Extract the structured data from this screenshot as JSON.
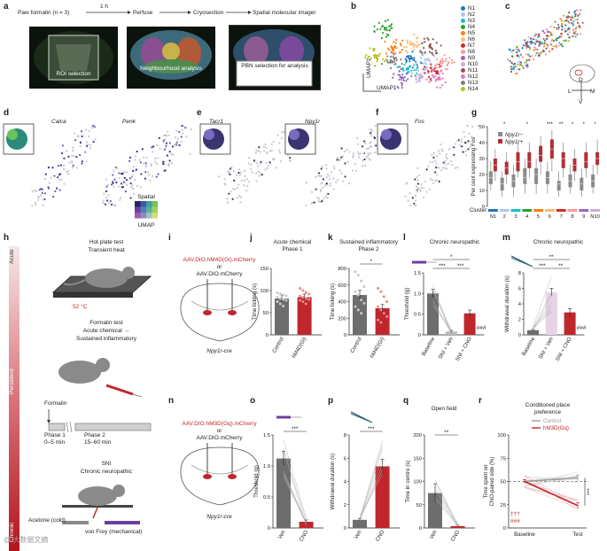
{
  "colors": {
    "red": "#c0272d",
    "gray": "#6d6d6d",
    "lightgray": "#b8b8b8",
    "purple": "#4a3a8c",
    "accent_teal": "#2a7f6f"
  },
  "panel_a": {
    "label": "a",
    "steps": [
      "Paw formalin (n = 3)",
      "Perfuse",
      "Cryosection",
      "Spatial molecular imager"
    ],
    "arrow1_label": "1 h",
    "image_captions": [
      "ROI selection",
      "Neighbourhood analysis",
      "PBN selection for analysis"
    ]
  },
  "panel_b": {
    "label": "b",
    "xlabel": "UMAP1",
    "ylabel": "UMAP2",
    "clusters": [
      {
        "name": "N1",
        "color": "#1f77b4"
      },
      {
        "name": "N2",
        "color": "#aec7e8"
      },
      {
        "name": "N3",
        "color": "#17becf"
      },
      {
        "name": "N4",
        "color": "#2ca02c"
      },
      {
        "name": "N5",
        "color": "#ff7f0e"
      },
      {
        "name": "N6",
        "color": "#ffbb78"
      },
      {
        "name": "N7",
        "color": "#d62728"
      },
      {
        "name": "N8",
        "color": "#ff9896"
      },
      {
        "name": "N9",
        "color": "#9467bd"
      },
      {
        "name": "N10",
        "color": "#c5b0d5"
      },
      {
        "name": "N11",
        "color": "#8c564b"
      },
      {
        "name": "N12",
        "color": "#e377c2"
      },
      {
        "name": "N13",
        "color": "#7f7f7f"
      },
      {
        "name": "N14",
        "color": "#bcbd22"
      }
    ]
  },
  "panel_c": {
    "label": "c",
    "compass": [
      "D",
      "V",
      "L",
      "M"
    ]
  },
  "panel_d": {
    "label": "d",
    "genes": [
      "Calca",
      "Penk"
    ],
    "legend_title": "Spatial",
    "legend_sub": "UMAP"
  },
  "panel_e": {
    "label": "e",
    "genes": [
      "Tacr1",
      "Npy1r"
    ]
  },
  "panel_f": {
    "label": "f",
    "genes": [
      "Fos"
    ]
  },
  "chart_data": [
    {
      "id": "g",
      "type": "box",
      "ylabel": "Per cent expressing Fos",
      "ylim": [
        0,
        50
      ],
      "yticks": [
        "0",
        "10",
        "20",
        "30",
        "40",
        "50"
      ],
      "xlabel": "Cluster:",
      "categories": [
        "N1",
        "2",
        "3",
        "4",
        "5",
        "6",
        "7",
        "8",
        "9",
        "N10"
      ],
      "cluster_colors": [
        "#1f77b4",
        "#aec7e8",
        "#17becf",
        "#2ca02c",
        "#ff7f0e",
        "#ffbb78",
        "#d62728",
        "#ff9896",
        "#9467bd",
        "#c5b0d5"
      ],
      "legend": [
        "Npy1r−",
        "Npy1r+"
      ],
      "significance": [
        "",
        "*",
        "",
        "*",
        "",
        "***",
        "**",
        "*",
        "*",
        "*"
      ],
      "series": [
        {
          "name": "Npy1r−",
          "color": "#8a8a8a",
          "boxes": [
            [
              10,
              14,
              18,
              22,
              28
            ],
            [
              6,
              10,
              14,
              18,
              22
            ],
            [
              6,
              12,
              16,
              20,
              26
            ],
            [
              8,
              14,
              18,
              24,
              30
            ],
            [
              8,
              14,
              20,
              24,
              30
            ],
            [
              8,
              14,
              18,
              22,
              28
            ],
            [
              6,
              10,
              14,
              16,
              22
            ],
            [
              8,
              12,
              16,
              20,
              26
            ],
            [
              6,
              10,
              14,
              18,
              24
            ],
            [
              8,
              12,
              16,
              20,
              26
            ]
          ]
        },
        {
          "name": "Npy1r+",
          "color": "#b03038",
          "boxes": [
            [
              16,
              22,
              26,
              30,
              36
            ],
            [
              14,
              20,
              24,
              28,
              34
            ],
            [
              18,
              22,
              28,
              34,
              40
            ],
            [
              18,
              24,
              28,
              34,
              40
            ],
            [
              20,
              28,
              32,
              38,
              44
            ],
            [
              22,
              30,
              36,
              42,
              48
            ],
            [
              18,
              24,
              30,
              34,
              40
            ],
            [
              16,
              22,
              26,
              30,
              36
            ],
            [
              18,
              24,
              28,
              34,
              40
            ],
            [
              20,
              26,
              30,
              34,
              42
            ]
          ]
        }
      ]
    },
    {
      "id": "j",
      "type": "bar",
      "title": "Acute chemical",
      "subtitle": "Phase 1",
      "ylabel": "Time licking (s)",
      "ylim": [
        0,
        150
      ],
      "yticks": [
        "0",
        "50",
        "100",
        "150"
      ],
      "categories": [
        "Control",
        "hM4D(Gi)"
      ],
      "values": [
        82,
        85
      ],
      "errors": [
        8,
        7
      ],
      "points": [
        [
          95,
          92,
          90,
          88,
          85,
          82,
          80,
          78,
          75,
          70,
          65
        ],
        [
          105,
          100,
          96,
          92,
          88,
          85,
          82,
          80,
          78,
          75,
          70
        ]
      ]
    },
    {
      "id": "k",
      "type": "bar",
      "title": "Sustained inflammatory",
      "subtitle": "Phase 2",
      "ylabel": "Time licking (s)",
      "ylim": [
        0,
        800
      ],
      "yticks": [
        "0",
        "200",
        "400",
        "600",
        "800"
      ],
      "categories": [
        "Control",
        "hM4D(Gi)"
      ],
      "values": [
        480,
        320
      ],
      "errors": [
        55,
        45
      ],
      "significance": "*",
      "points": [
        [
          760,
          720,
          650,
          580,
          520,
          480,
          420,
          380,
          340,
          300,
          260
        ],
        [
          560,
          520,
          460,
          400,
          340,
          300,
          260,
          220,
          180,
          150
        ]
      ]
    },
    {
      "id": "l",
      "type": "bar",
      "title": "Chronic neuropathic",
      "ylabel": "Threshold (g)",
      "ylim": [
        0,
        1.5
      ],
      "yticks": [
        "0",
        "0.5",
        "1.0",
        "1.5"
      ],
      "categories": [
        "Baseline",
        "SNI + Veh",
        "SNI + CNO"
      ],
      "values": [
        1.0,
        0.08,
        0.52
      ],
      "errors": [
        0.1,
        0.03,
        0.08
      ],
      "significance": [
        "*",
        "***",
        "***"
      ],
      "annotation": "###"
    },
    {
      "id": "m",
      "type": "bar",
      "title": "Chronic neuropathic",
      "ylabel": "Withdrawal duration (s)",
      "ylim": [
        0,
        8
      ],
      "yticks": [
        "0",
        "2",
        "4",
        "6",
        "8"
      ],
      "categories": [
        "Baseline",
        "SNI + Veh",
        "SNI + CNO"
      ],
      "values": [
        0.6,
        5.5,
        2.9
      ],
      "errors": [
        0.1,
        0.5,
        0.5
      ],
      "significance": [
        "**",
        "***",
        "**"
      ],
      "annotation": "###"
    },
    {
      "id": "o",
      "type": "bar",
      "ylabel": "Threshold (g)",
      "ylim": [
        0,
        1.5
      ],
      "yticks": [
        "0",
        "0.5",
        "1.0",
        "1.5"
      ],
      "categories": [
        "Veh",
        "CNO"
      ],
      "values": [
        1.12,
        0.1
      ],
      "errors": [
        0.12,
        0.03
      ],
      "significance": "***"
    },
    {
      "id": "p",
      "type": "bar",
      "ylabel": "Withdrawal duration (s)",
      "ylim": [
        0,
        8
      ],
      "yticks": [
        "0",
        "2",
        "4",
        "6",
        "8"
      ],
      "categories": [
        "Veh",
        "CNO"
      ],
      "values": [
        0.7,
        5.3
      ],
      "errors": [
        0.1,
        0.6
      ],
      "significance": "***"
    },
    {
      "id": "q",
      "type": "bar",
      "title": "Open field",
      "ylabel": "Time in centre (s)",
      "ylim": [
        0,
        200
      ],
      "yticks": [
        "0",
        "50",
        "100",
        "150",
        "200"
      ],
      "categories": [
        "Veh",
        "CNO"
      ],
      "values": [
        75,
        4
      ],
      "errors": [
        20,
        2
      ],
      "significance": "**"
    },
    {
      "id": "r",
      "type": "line",
      "title": "Conditioned place preference",
      "ylabel": "Time spent on CNO-paired side (%)",
      "ylim": [
        0,
        100
      ],
      "yticks": [
        "0",
        "25",
        "50",
        "75",
        "100"
      ],
      "x": [
        "Baseline",
        "Test"
      ],
      "series": [
        {
          "name": "Control",
          "color": "#9a9a9a",
          "values": [
            50,
            54
          ],
          "errors": [
            2,
            3
          ]
        },
        {
          "name": "hM3D(Gq)",
          "color": "#c0272d",
          "values": [
            50,
            24
          ],
          "errors": [
            2,
            3
          ]
        }
      ],
      "significance": "***",
      "annotation_top": "†††",
      "annotation_bottom": "###"
    }
  ],
  "panel_h": {
    "label": "h",
    "timeline": [
      "Acute",
      "Persistent",
      "Chronic"
    ],
    "hotplate_title": "Hot plate test",
    "hotplate_sub": "Transient heat",
    "temp": "52 °C",
    "formalin_title": "Formalin test",
    "formalin_sub1": "Acute chemical →",
    "formalin_sub2": "Sustained inflammatory",
    "formalin_label": "Formalin",
    "phase1": "Phase 1",
    "phase1_time": "0–5 min",
    "phase2": "Phase 2",
    "phase2_time": "15–60 min",
    "sni_title": "SNI",
    "sni_sub": "Chronic neuropathic",
    "acetone": "Acetone (cold)",
    "vonfrey": "von Frey (mechanical)"
  },
  "panel_i": {
    "label": "i",
    "virus1": "AAV.DIO.hM4D(Gi).mCherry",
    "or": "or",
    "virus2": "AAV.DIO.mCherry",
    "mouse": "Npy1r-cre"
  },
  "panel_n": {
    "label": "n",
    "virus1": "AAV.DIO.hM3D(Gq).mCherry",
    "or": "or",
    "virus2": "AAV.DIO.mCherry",
    "mouse": "Npy1r-cre"
  },
  "panel_labels": {
    "j": "j",
    "k": "k",
    "l": "l",
    "m": "m",
    "o": "o",
    "p": "p",
    "q": "q",
    "r": "r"
  },
  "watermark": "@ 大数据文摘"
}
